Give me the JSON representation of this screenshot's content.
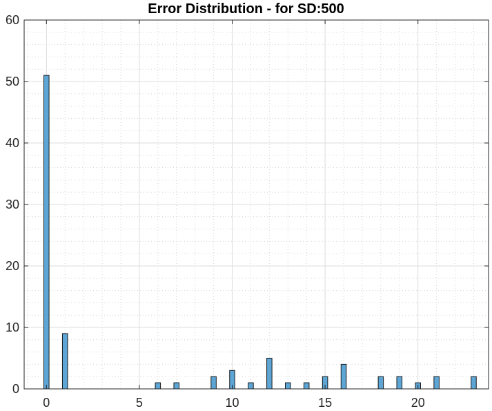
{
  "chart_data": {
    "type": "bar",
    "title": "Error Distribution - for SD:500",
    "xlabel": "",
    "ylabel": "",
    "xlim": [
      -1.2,
      23.8
    ],
    "ylim": [
      0,
      60
    ],
    "x_ticks": [
      0,
      5,
      10,
      15,
      20
    ],
    "y_ticks": [
      0,
      10,
      20,
      30,
      40,
      50,
      60
    ],
    "grid": true,
    "minor_grid": true,
    "bar_color": "#5DA5D4",
    "bar_edge_color": "#1a1a1a",
    "x": [
      0,
      1,
      2,
      3,
      4,
      5,
      6,
      7,
      8,
      9,
      10,
      11,
      12,
      13,
      14,
      15,
      16,
      17,
      18,
      19,
      20,
      21,
      22,
      23
    ],
    "values": [
      51,
      9,
      0,
      0,
      0,
      0,
      1,
      1,
      0,
      2,
      3,
      1,
      5,
      1,
      1,
      2,
      4,
      0,
      2,
      2,
      1,
      2,
      0,
      2
    ]
  }
}
